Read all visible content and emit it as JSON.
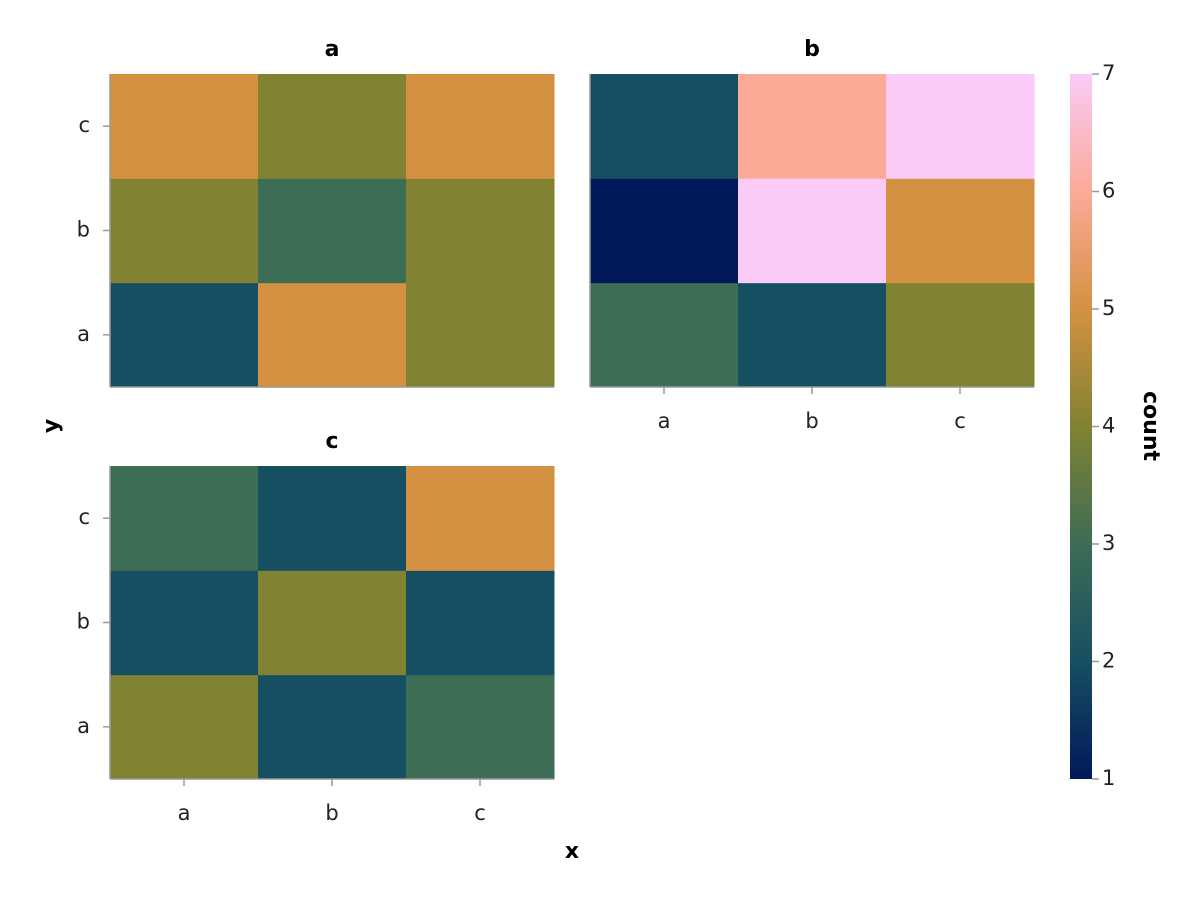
{
  "chart_data": {
    "type": "heatmap",
    "xlabel": "x",
    "ylabel": "y",
    "x_categories": [
      "a",
      "b",
      "c"
    ],
    "y_categories": [
      "a",
      "b",
      "c"
    ],
    "facets": [
      {
        "title": "a",
        "x_tick_labels": false,
        "y_tick_labels": true,
        "values": [
          [
            2,
            5,
            4
          ],
          [
            4,
            3,
            4
          ],
          [
            5,
            4,
            5
          ]
        ]
      },
      {
        "title": "b",
        "x_tick_labels": true,
        "y_tick_labels": false,
        "values": [
          [
            3,
            2,
            4
          ],
          [
            1,
            7,
            5
          ],
          [
            2,
            6,
            7
          ]
        ]
      },
      {
        "title": "c",
        "x_tick_labels": true,
        "y_tick_labels": true,
        "values": [
          [
            4,
            2,
            3
          ],
          [
            2,
            4,
            2
          ],
          [
            3,
            2,
            5
          ]
        ]
      }
    ],
    "colorbar": {
      "label": "count",
      "lim": [
        1,
        7
      ],
      "ticks": [
        1,
        2,
        3,
        4,
        5,
        6,
        7
      ]
    },
    "colors": [
      "#011959",
      "#174f62",
      "#3d6d55",
      "#818232",
      "#d49142",
      "#fcaa98",
      "#facbf7"
    ]
  }
}
